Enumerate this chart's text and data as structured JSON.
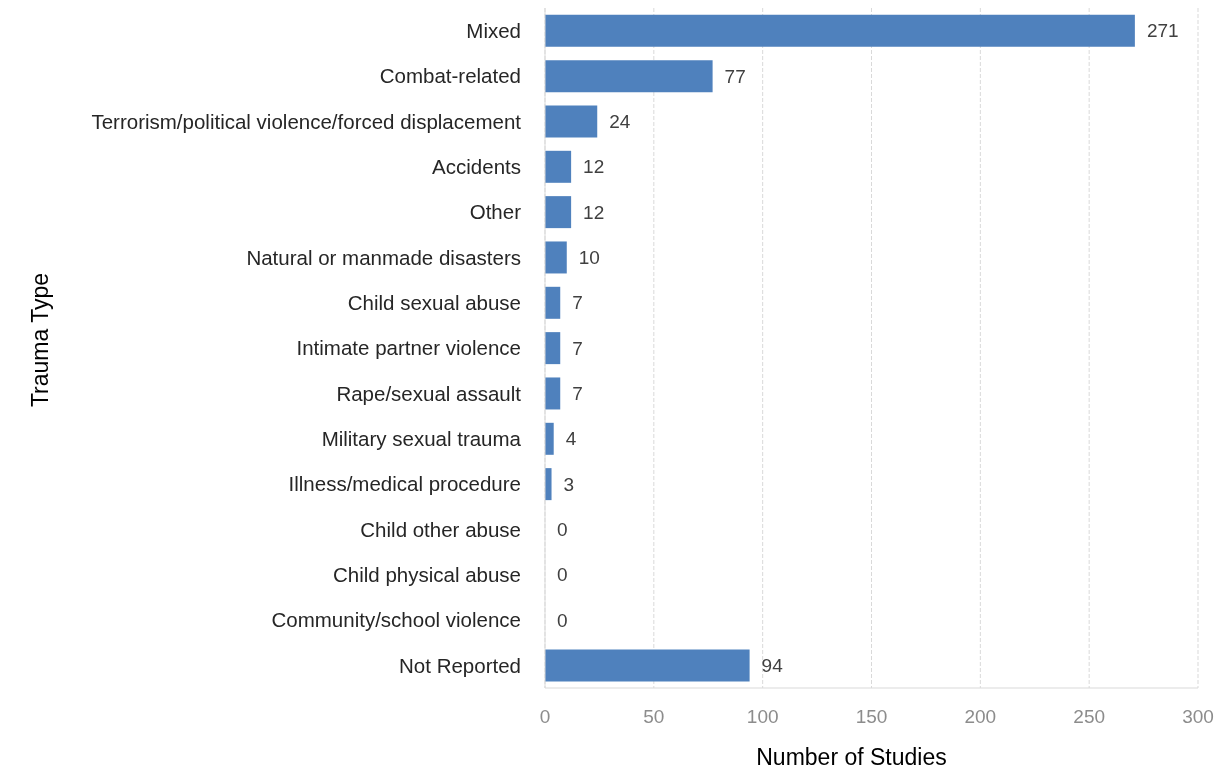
{
  "chart_data": {
    "type": "bar",
    "orientation": "horizontal",
    "categories": [
      "Mixed",
      "Combat-related",
      "Terrorism/political violence/forced displacement",
      "Accidents",
      "Other",
      "Natural or manmade disasters",
      "Child sexual abuse",
      "Intimate partner violence",
      "Rape/sexual assault",
      "Military sexual trauma",
      "Illness/medical procedure",
      "Child other abuse",
      "Child physical abuse",
      "Community/school violence",
      "Not Reported"
    ],
    "values": [
      271,
      77,
      24,
      12,
      12,
      10,
      7,
      7,
      7,
      4,
      3,
      0,
      0,
      0,
      94
    ],
    "color": "#4f81bd",
    "xlabel": "Number of Studies",
    "ylabel": "Trauma Type",
    "xlim": [
      0,
      300
    ],
    "xticks": [
      0,
      50,
      100,
      150,
      200,
      250,
      300
    ],
    "grid": "x",
    "data_labels": true
  }
}
